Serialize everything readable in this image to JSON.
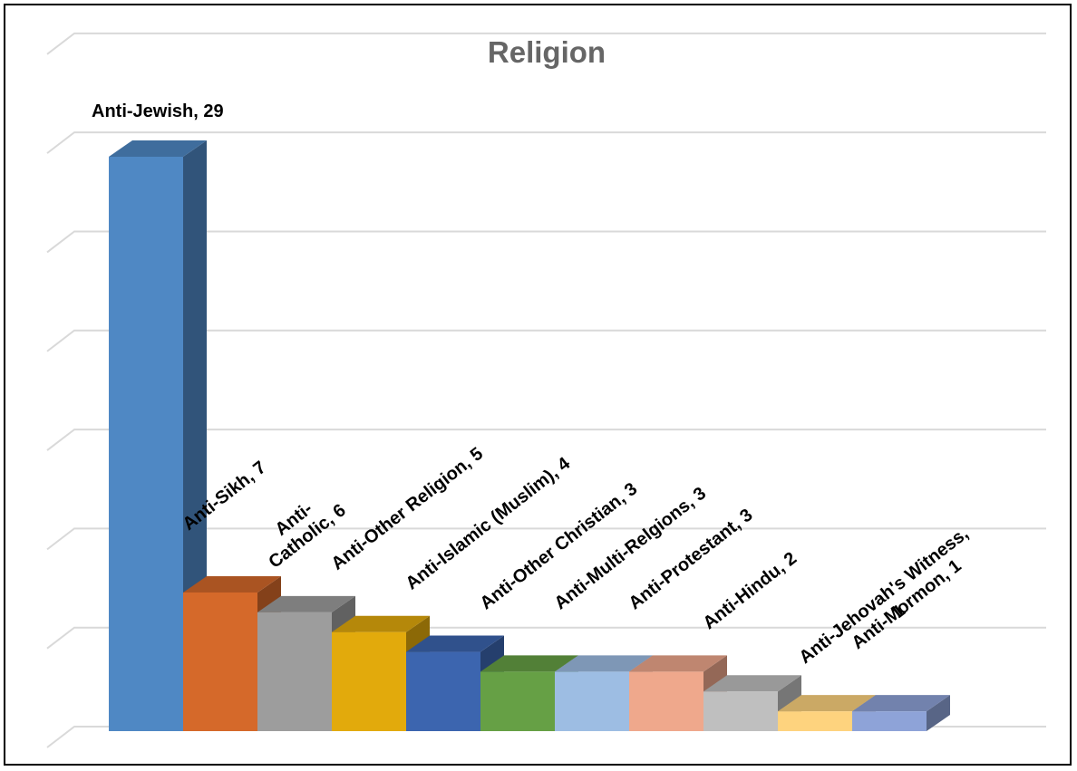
{
  "chart_data": {
    "type": "bar",
    "title": "Religion",
    "xlabel": "",
    "ylabel": "",
    "ylim": [
      0,
      35
    ],
    "grid": true,
    "legend": "none",
    "style": "3d-column",
    "categories": [
      "Anti-Jewish",
      "Anti-Sikh",
      "Anti-Catholic",
      "Anti-Other Religion",
      "Anti-Islamic (Muslim)",
      "Anti-Other Christian",
      "Anti-Multi-Relgions",
      "Anti-Protestant",
      "Anti-Hindu",
      "Anti-Jehovah's Witness",
      "Anti-Mormon"
    ],
    "values": [
      29,
      7,
      6,
      5,
      4,
      3,
      3,
      3,
      2,
      1,
      1
    ],
    "data_labels": [
      [
        "Anti-Jewish, 29"
      ],
      [
        "Anti-Sikh, 7"
      ],
      [
        "Anti-",
        "Catholic, 6"
      ],
      [
        "Anti-Other Religion, 5"
      ],
      [
        "Anti-Islamic (Muslim), 4"
      ],
      [
        "Anti-Other Christian, 3"
      ],
      [
        "Anti-Multi-Relgions, 3"
      ],
      [
        "Anti-Protestant, 3"
      ],
      [
        "Anti-Hindu, 2"
      ],
      [
        "Anti-Jehovah's Witness,",
        "1"
      ],
      [
        "Anti-Mormon, 1"
      ]
    ],
    "colors": [
      "#4f88c4",
      "#d5692a",
      "#9d9d9d",
      "#e2aa0c",
      "#3c65af",
      "#66a045",
      "#9dbde3",
      "#efa88c",
      "#bfbfbf",
      "#fed37e",
      "#8ea3d8"
    ]
  }
}
